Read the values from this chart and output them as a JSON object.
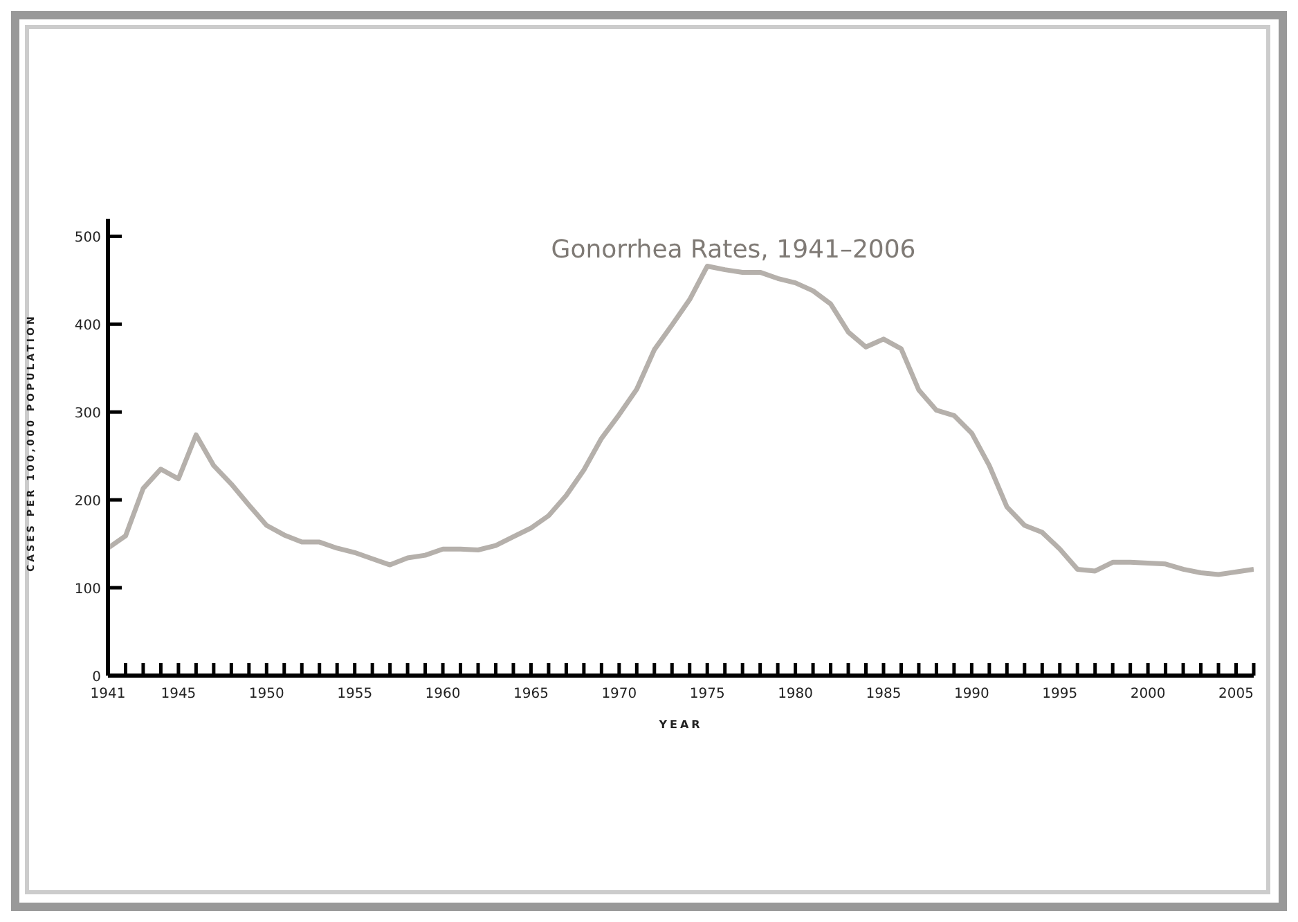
{
  "chart_data": {
    "type": "line",
    "title": "Gonorrhea Rates, 1941–2006",
    "xlabel": "YEAR",
    "ylabel": "CASES PER 100,000 POPULATION",
    "x": [
      1941,
      1942,
      1943,
      1944,
      1945,
      1946,
      1947,
      1948,
      1949,
      1950,
      1951,
      1952,
      1953,
      1954,
      1955,
      1956,
      1957,
      1958,
      1959,
      1960,
      1961,
      1962,
      1963,
      1964,
      1965,
      1966,
      1967,
      1968,
      1969,
      1970,
      1971,
      1972,
      1973,
      1974,
      1975,
      1976,
      1977,
      1978,
      1979,
      1980,
      1981,
      1982,
      1983,
      1984,
      1985,
      1986,
      1987,
      1988,
      1989,
      1990,
      1991,
      1992,
      1993,
      1994,
      1995,
      1996,
      1997,
      1998,
      1999,
      2000,
      2001,
      2002,
      2003,
      2004,
      2005,
      2006
    ],
    "series": [
      {
        "color": "#b5b0ab",
        "values": [
          145,
          159,
          213,
          235,
          224,
          274,
          239,
          218,
          194,
          171,
          160,
          152,
          152,
          145,
          140,
          133,
          126,
          134,
          137,
          144,
          144,
          143,
          148,
          158,
          168,
          182,
          205,
          234,
          270,
          297,
          326,
          371,
          399,
          428,
          466,
          462,
          459,
          459,
          452,
          447,
          438,
          423,
          391,
          374,
          383,
          372,
          325,
          302,
          296,
          276,
          239,
          192,
          171,
          163,
          144,
          121,
          119,
          129,
          129,
          128,
          127,
          121,
          117,
          115,
          118,
          121
        ]
      }
    ],
    "xlim": [
      1941,
      2006
    ],
    "ylim": [
      0,
      520
    ],
    "yticks": [
      0,
      100,
      200,
      300,
      400,
      500
    ],
    "xticks": [
      1941,
      {
        "value": 1942,
        "label": null
      },
      {
        "value": 1943,
        "label": null
      },
      {
        "value": 1944,
        "label": null
      },
      1945,
      {
        "value": 1946,
        "label": null
      },
      {
        "value": 1947,
        "label": null
      },
      {
        "value": 1948,
        "label": null
      },
      {
        "value": 1949,
        "label": null
      },
      1950,
      {
        "value": 1951,
        "label": null
      },
      {
        "value": 1952,
        "label": null
      },
      {
        "value": 1953,
        "label": null
      },
      {
        "value": 1954,
        "label": null
      },
      1955,
      {
        "value": 1956,
        "label": null
      },
      {
        "value": 1957,
        "label": null
      },
      {
        "value": 1958,
        "label": null
      },
      {
        "value": 1959,
        "label": null
      },
      1960,
      {
        "value": 1961,
        "label": null
      },
      {
        "value": 1962,
        "label": null
      },
      {
        "value": 1963,
        "label": null
      },
      {
        "value": 1964,
        "label": null
      },
      1965,
      {
        "value": 1966,
        "label": null
      },
      {
        "value": 1967,
        "label": null
      },
      {
        "value": 1968,
        "label": null
      },
      {
        "value": 1969,
        "label": null
      },
      1970,
      {
        "value": 1971,
        "label": null
      },
      {
        "value": 1972,
        "label": null
      },
      {
        "value": 1973,
        "label": null
      },
      {
        "value": 1974,
        "label": null
      },
      1975,
      {
        "value": 1976,
        "label": null
      },
      {
        "value": 1977,
        "label": null
      },
      {
        "value": 1978,
        "label": null
      },
      {
        "value": 1979,
        "label": null
      },
      1980,
      {
        "value": 1981,
        "label": null
      },
      {
        "value": 1982,
        "label": null
      },
      {
        "value": 1983,
        "label": null
      },
      {
        "value": 1984,
        "label": null
      },
      1985,
      {
        "value": 1986,
        "label": null
      },
      {
        "value": 1987,
        "label": null
      },
      {
        "value": 1988,
        "label": null
      },
      {
        "value": 1989,
        "label": null
      },
      1990,
      {
        "value": 1991,
        "label": null
      },
      {
        "value": 1992,
        "label": null
      },
      {
        "value": 1993,
        "label": null
      },
      {
        "value": 1994,
        "label": null
      },
      1995,
      {
        "value": 1996,
        "label": null
      },
      {
        "value": 1997,
        "label": null
      },
      {
        "value": 1998,
        "label": null
      },
      {
        "value": 1999,
        "label": null
      },
      2000,
      {
        "value": 2001,
        "label": null
      },
      {
        "value": 2002,
        "label": null
      },
      {
        "value": 2003,
        "label": null
      },
      {
        "value": 2004,
        "label": null
      },
      2005,
      {
        "value": 2006,
        "label": null
      }
    ],
    "marker": "none",
    "line_style": "solid"
  }
}
